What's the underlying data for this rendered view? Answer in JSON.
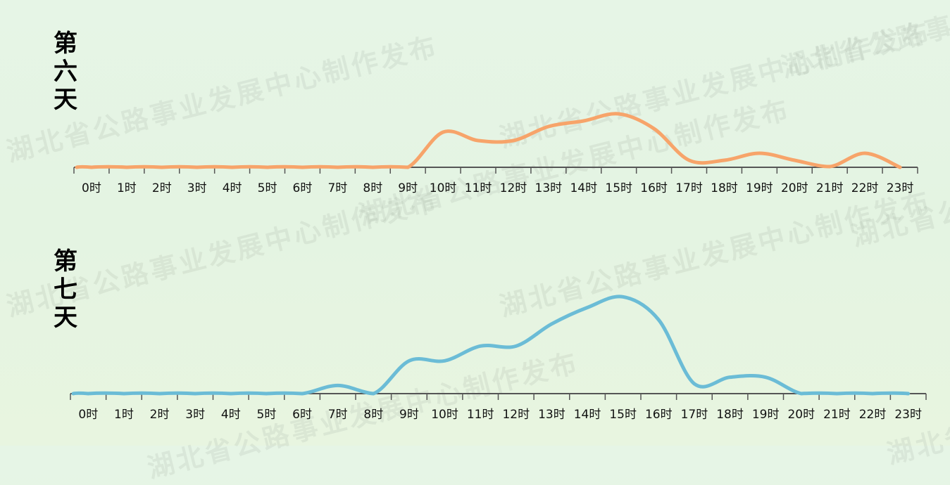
{
  "watermark": "湖北省公路事业发展中心制作发布",
  "chart_data": [
    {
      "type": "line",
      "title": "第六天",
      "categories": [
        "0时",
        "1时",
        "2时",
        "3时",
        "4时",
        "5时",
        "6时",
        "7时",
        "8时",
        "9时",
        "10时",
        "11时",
        "12时",
        "13时",
        "14时",
        "15时",
        "16时",
        "17时",
        "18时",
        "19时",
        "20时",
        "21时",
        "22时",
        "23时"
      ],
      "series": [
        {
          "values": [
            0,
            0,
            0,
            0,
            0,
            0,
            0,
            0,
            0,
            0,
            50,
            38,
            38,
            58,
            66,
            76,
            55,
            10,
            10,
            20,
            10,
            1,
            20,
            0
          ],
          "color": "#f7a46a"
        }
      ],
      "ylim": [
        0,
        120
      ],
      "grid": false
    },
    {
      "type": "line",
      "title": "第七天",
      "categories": [
        "0时",
        "1时",
        "2时",
        "3时",
        "4时",
        "5时",
        "6时",
        "7时",
        "8时",
        "9时",
        "10时",
        "11时",
        "12时",
        "13时",
        "14时",
        "15时",
        "16时",
        "17时",
        "18时",
        "19时",
        "20时",
        "21时",
        "22时",
        "23时"
      ],
      "series": [
        {
          "values": [
            0,
            0,
            0,
            0,
            0,
            0,
            0,
            10,
            0,
            40,
            40,
            58,
            58,
            85,
            105,
            118,
            90,
            12,
            20,
            20,
            0,
            0,
            0,
            0
          ],
          "color": "#6bbcd6"
        }
      ],
      "ylim": [
        0,
        120
      ],
      "grid": false
    }
  ]
}
